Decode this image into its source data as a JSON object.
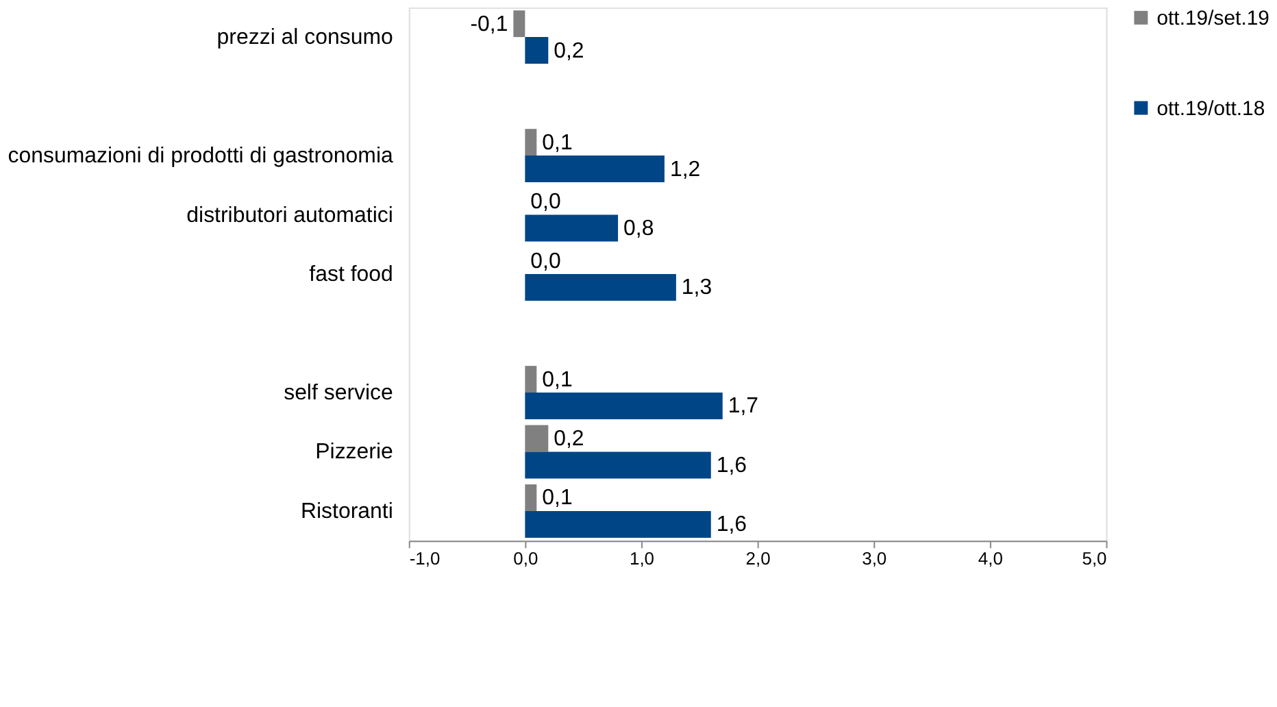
{
  "chart_data": {
    "type": "bar",
    "orientation": "horizontal",
    "categories": [
      "prezzi al consumo",
      null,
      "consumazioni di prodotti di gastronomia",
      "distributori automatici",
      "fast food",
      null,
      "self service",
      "Pizzerie",
      "Ristoranti"
    ],
    "series": [
      {
        "name": "ott.19/set.19",
        "color": "#808080",
        "values": [
          -0.1,
          null,
          0.1,
          0.0,
          0.0,
          null,
          0.1,
          0.2,
          0.1
        ],
        "value_labels": [
          "-0,1",
          null,
          "0,1",
          "0,0",
          "0,0",
          null,
          "0,1",
          "0,2",
          "0,1"
        ]
      },
      {
        "name": "ott.19/ott.18",
        "color": "#004586",
        "values": [
          0.2,
          null,
          1.2,
          0.8,
          1.3,
          null,
          1.7,
          1.6,
          1.6
        ],
        "value_labels": [
          "0,2",
          null,
          "1,2",
          "0,8",
          "1,3",
          null,
          "1,7",
          "1,6",
          "1,6"
        ]
      }
    ],
    "xlim": [
      -1,
      5
    ],
    "xticks": [
      {
        "value": -1,
        "label": "-1,0"
      },
      {
        "value": 0,
        "label": "0,0"
      },
      {
        "value": 1,
        "label": "1,0"
      },
      {
        "value": 2,
        "label": "2,0"
      },
      {
        "value": 3,
        "label": "3,0"
      },
      {
        "value": 4,
        "label": "4,0"
      },
      {
        "value": 5,
        "label": "5,0"
      }
    ],
    "grid": false,
    "legend": "right"
  }
}
